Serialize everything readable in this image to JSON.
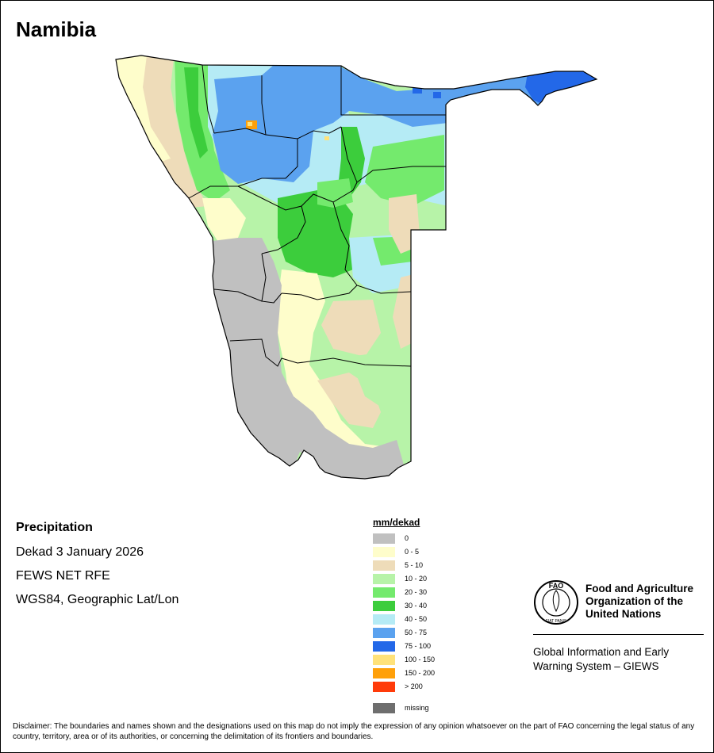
{
  "map": {
    "title": "Namibia",
    "variable": "Precipitation",
    "period": "Dekad 3 January 2026",
    "source": "FEWS NET RFE",
    "projection": "WGS84, Geographic Lat/Lon"
  },
  "legend": {
    "unit": "mm/dekad",
    "items": [
      {
        "label": "0",
        "color": "#c0c0c0"
      },
      {
        "label": "0 - 5",
        "color": "#fefdcb"
      },
      {
        "label": "5 - 10",
        "color": "#eedcb9"
      },
      {
        "label": "10 - 20",
        "color": "#b7f3a8"
      },
      {
        "label": "20 - 30",
        "color": "#74ea6d"
      },
      {
        "label": "30 - 40",
        "color": "#3ccd3c"
      },
      {
        "label": "40 - 50",
        "color": "#b5ebf5"
      },
      {
        "label": "50 - 75",
        "color": "#5ba2ef"
      },
      {
        "label": "75 - 100",
        "color": "#2368e8"
      },
      {
        "label": "100 - 150",
        "color": "#ffe27a"
      },
      {
        "label": "150 - 200",
        "color": "#ffa00a"
      },
      {
        "label": "> 200",
        "color": "#ff3b0a"
      }
    ],
    "missing": {
      "label": "missing",
      "color": "#6e6e6e"
    }
  },
  "organization": {
    "name": "Food and Agriculture Organization of the United Nations",
    "logo_text": "FAO",
    "logo_motto": "FIAT PANIS",
    "system": "Global Information and Early Warning System – GIEWS"
  },
  "disclaimer": "Disclaimer: The boundaries and names shown and the designations used on this map do not imply the expression of any opinion whatsoever on the part of FAO concerning the legal status of any country, territory, area or of its authorities, or concerning the delimitation of its frontiers and boundaries."
}
